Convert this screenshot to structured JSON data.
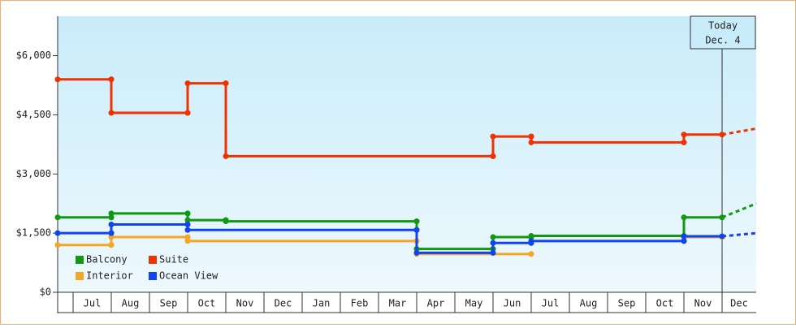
{
  "chart_data": {
    "type": "step-line",
    "categories": [
      "Jul",
      "Aug",
      "Sep",
      "Oct",
      "Nov",
      "Dec",
      "Jan",
      "Feb",
      "Mar",
      "Apr",
      "May",
      "Jun",
      "Jul",
      "Aug",
      "Sep",
      "Oct",
      "Nov",
      "Dec"
    ],
    "series": [
      {
        "name": "Balcony",
        "color": "#119911",
        "values": [
          1900,
          2000,
          2000,
          1830,
          1800,
          1800,
          1800,
          1800,
          1800,
          1100,
          1100,
          1400,
          1430,
          1430,
          1430,
          1430,
          1900,
          2250
        ]
      },
      {
        "name": "Suite",
        "color": "#ee3300",
        "values": [
          5400,
          4550,
          4550,
          5300,
          3450,
          3450,
          3450,
          3450,
          3450,
          3450,
          3450,
          3950,
          3800,
          3800,
          3800,
          3800,
          4000,
          4150
        ]
      },
      {
        "name": "Interior",
        "color": "#f5a623",
        "values": [
          1200,
          1400,
          1400,
          1300,
          1300,
          1300,
          1300,
          1300,
          1300,
          970,
          970,
          970,
          null,
          null,
          null,
          null,
          1400,
          null
        ]
      },
      {
        "name": "Ocean View",
        "color": "#1144ee",
        "values": [
          1500,
          1720,
          1720,
          1580,
          1580,
          1580,
          1580,
          1580,
          1580,
          1000,
          1000,
          1250,
          1300,
          1300,
          1300,
          1300,
          1420,
          1500
        ]
      }
    ],
    "ylim": [
      0,
      7000
    ],
    "yticks": [
      {
        "value": 0,
        "label": "$0"
      },
      {
        "value": 1500,
        "label": "$1,500"
      },
      {
        "value": 3000,
        "label": "$3,000"
      },
      {
        "value": 4500,
        "label": "$4,500"
      },
      {
        "value": 6000,
        "label": "$6,000"
      }
    ],
    "annotation": [
      "Today",
      "Dec. 4"
    ]
  }
}
